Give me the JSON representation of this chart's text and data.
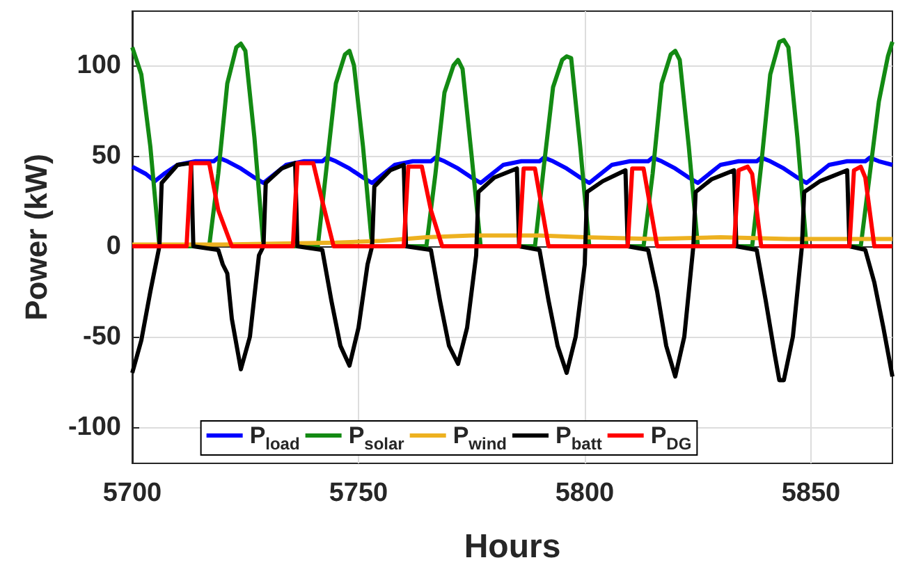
{
  "chart_data": {
    "type": "line",
    "xlabel": "Hours",
    "ylabel": "Power (kW)",
    "xlim": [
      5700,
      5868
    ],
    "ylim": [
      -120,
      130
    ],
    "xticks": [
      5700,
      5750,
      5800,
      5850
    ],
    "yticks": [
      -100,
      -50,
      0,
      50,
      100
    ],
    "grid": true,
    "legend": "bottom",
    "marker": "none",
    "series": [
      {
        "name": "P$_{load}$",
        "color": "#0000ff",
        "x": [
          5700,
          5703,
          5705,
          5707,
          5710,
          5714,
          5718,
          5719,
          5721,
          5724,
          5727,
          5729,
          5731,
          5734,
          5738,
          5742,
          5743,
          5745,
          5748,
          5751,
          5753,
          5755,
          5758,
          5762,
          5766,
          5767,
          5769,
          5772,
          5775,
          5777,
          5779,
          5782,
          5786,
          5790,
          5791,
          5793,
          5796,
          5799,
          5801,
          5803,
          5806,
          5810,
          5814,
          5815,
          5817,
          5820,
          5823,
          5825,
          5827,
          5830,
          5834,
          5838,
          5839,
          5841,
          5844,
          5847,
          5849,
          5851,
          5854,
          5858,
          5862,
          5863,
          5865,
          5868
        ],
        "values": [
          44,
          40,
          36,
          40,
          45,
          47,
          47,
          49,
          47,
          43,
          38,
          35,
          39,
          45,
          47,
          47,
          49,
          47,
          43,
          38,
          35,
          39,
          45,
          47,
          47,
          49,
          47,
          43,
          38,
          35,
          39,
          45,
          47,
          47,
          49,
          47,
          43,
          38,
          35,
          39,
          45,
          47,
          47,
          49,
          47,
          43,
          38,
          35,
          39,
          45,
          47,
          47,
          49,
          47,
          43,
          38,
          35,
          39,
          45,
          47,
          47,
          49,
          47,
          45
        ]
      },
      {
        "name": "P$_{solar}$",
        "color": "#138a13",
        "x": [
          5700,
          5702,
          5704,
          5706,
          5717,
          5719,
          5721,
          5723,
          5724,
          5725,
          5727,
          5729,
          5741,
          5743,
          5745,
          5747,
          5748,
          5749,
          5751,
          5753,
          5765,
          5767,
          5769,
          5771,
          5772,
          5773,
          5775,
          5777,
          5789,
          5791,
          5793,
          5795,
          5796,
          5797,
          5799,
          5801,
          5813,
          5815,
          5817,
          5819,
          5820,
          5821,
          5823,
          5825,
          5837,
          5839,
          5841,
          5843,
          5844,
          5845,
          5847,
          5849,
          5861,
          5863,
          5865,
          5867,
          5868
        ],
        "values": [
          110,
          95,
          55,
          0,
          0,
          40,
          90,
          110,
          112,
          108,
          60,
          0,
          0,
          45,
          90,
          106,
          108,
          100,
          55,
          0,
          0,
          40,
          85,
          100,
          103,
          98,
          50,
          0,
          0,
          45,
          88,
          103,
          105,
          104,
          55,
          0,
          0,
          40,
          90,
          106,
          108,
          103,
          55,
          0,
          0,
          45,
          95,
          113,
          114,
          110,
          60,
          0,
          0,
          40,
          80,
          105,
          113
        ]
      },
      {
        "name": "P$_{wind}$",
        "color": "#edb120",
        "x": [
          5700,
          5720,
          5745,
          5755,
          5765,
          5775,
          5790,
          5800,
          5815,
          5830,
          5845,
          5868
        ],
        "values": [
          1,
          1,
          2,
          3,
          5,
          6,
          6,
          5,
          4,
          5,
          4,
          4
        ]
      },
      {
        "name": "P$_{batt}$",
        "color": "#000000",
        "x": [
          5700,
          5702,
          5704,
          5706,
          5706.5,
          5710,
          5713,
          5713.5,
          5719,
          5720,
          5721,
          5722,
          5724,
          5726,
          5728,
          5729,
          5729.5,
          5733,
          5736,
          5736.5,
          5742,
          5744,
          5746,
          5748,
          5750,
          5752,
          5753,
          5753.5,
          5757,
          5760,
          5760.5,
          5766,
          5768,
          5770,
          5772,
          5774,
          5776,
          5776.5,
          5780,
          5785,
          5785.5,
          5790,
          5792,
          5794,
          5796,
          5798,
          5800,
          5800.5,
          5804,
          5809,
          5809.5,
          5814,
          5816,
          5818,
          5820,
          5822,
          5824,
          5824.5,
          5828,
          5833,
          5833.5,
          5838,
          5840,
          5842,
          5843,
          5844,
          5846,
          5848,
          5848.5,
          5852,
          5858,
          5858.5,
          5862,
          5864,
          5866,
          5868
        ],
        "values": [
          -70,
          -52,
          -25,
          0,
          35,
          45,
          46,
          0,
          -2,
          -10,
          -15,
          -40,
          -68,
          -50,
          -5,
          0,
          35,
          43,
          46,
          0,
          -2,
          -30,
          -55,
          -66,
          -45,
          -10,
          0,
          33,
          42,
          45,
          0,
          -2,
          -30,
          -55,
          -65,
          -45,
          -5,
          30,
          38,
          43,
          0,
          -2,
          -30,
          -55,
          -70,
          -50,
          -10,
          30,
          36,
          42,
          0,
          -2,
          -25,
          -55,
          -72,
          -50,
          0,
          30,
          37,
          42,
          0,
          -2,
          -30,
          -60,
          -74,
          -74,
          -50,
          0,
          30,
          36,
          42,
          0,
          -2,
          -20,
          -45,
          -72
        ]
      },
      {
        "name": "P$_{DG}$",
        "color": "#ff0000",
        "x": [
          5700,
          5712,
          5713,
          5717,
          5719,
          5722,
          5735.5,
          5736.5,
          5740,
          5742,
          5744.5,
          5760,
          5761,
          5764,
          5766,
          5768.5,
          5785.5,
          5786.5,
          5789,
          5792,
          5809.5,
          5810.5,
          5813,
          5816,
          5833,
          5834,
          5836,
          5837,
          5839,
          5858.5,
          5859.5,
          5861,
          5862,
          5864,
          5868
        ],
        "values": [
          0,
          0,
          46,
          46,
          20,
          0,
          0,
          46,
          46,
          25,
          0,
          0,
          44,
          44,
          20,
          0,
          0,
          43,
          43,
          0,
          0,
          43,
          43,
          0,
          0,
          42,
          44,
          40,
          0,
          0,
          42,
          44,
          38,
          0,
          0
        ]
      }
    ]
  }
}
